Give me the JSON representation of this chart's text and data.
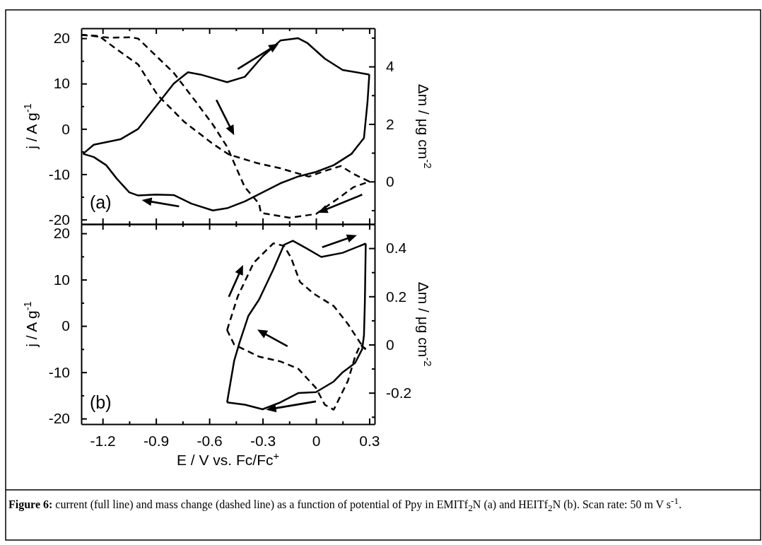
{
  "chart_data": [
    {
      "type": "line",
      "ylabel": "j / A g$^{-1}$",
      "y2label": "Δm / μg cm$^{-2}$",
      "annotations": [
        "(a)"
      ],
      "tick_labels": "y",
      "xlim": [
        -1.32,
        0.33
      ],
      "ylim": [
        -21,
        22.2
      ],
      "y2lim": [
        -1.48,
        5.33
      ],
      "xticks": [
        -1.2,
        {
          "value": -1.05,
          "label": null
        },
        -0.9,
        {
          "value": -0.75,
          "label": null
        },
        -0.6,
        {
          "value": -0.45,
          "label": null
        },
        -0.3,
        {
          "value": -0.15,
          "label": null
        },
        0.0,
        {
          "value": 0.15,
          "label": null
        },
        0.3
      ],
      "yticks": [
        -20,
        {
          "value": -15,
          "label": null
        },
        -10,
        {
          "value": -5,
          "label": null
        },
        0,
        {
          "value": 5,
          "label": null
        },
        10,
        {
          "value": 15,
          "label": null
        },
        20
      ],
      "y2ticks": [
        {
          "value": -1,
          "label": null
        },
        0,
        {
          "value": 1,
          "label": null
        },
        2,
        {
          "value": 3,
          "label": null
        },
        4,
        {
          "value": 5,
          "label": null
        }
      ],
      "series": [
        {
          "color": "#000000",
          "line_style": "solid",
          "x": [
            -1.31,
            -1.25,
            -1.1,
            -1.0,
            -0.9,
            -0.8,
            -0.72,
            -0.65,
            -0.5,
            -0.4,
            -0.3,
            -0.2,
            -0.1,
            -0.05,
            0.05,
            0.15,
            0.3
          ],
          "values": [
            -5.5,
            -3.5,
            -2.3,
            0,
            5,
            10,
            12.5,
            12,
            10.3,
            11.5,
            16,
            19.5,
            20,
            19,
            15.5,
            13,
            12
          ]
        },
        {
          "color": "#000000",
          "line_style": "solid",
          "x": [
            0.3,
            0.29,
            0.27,
            0.23,
            0.2,
            0.1,
            0.0,
            -0.1,
            -0.2,
            -0.3,
            -0.4,
            -0.5,
            -0.58,
            -0.7,
            -0.8,
            -0.9,
            -1.0,
            -1.05,
            -1.12,
            -1.18,
            -1.25,
            -1.31
          ],
          "values": [
            12,
            6,
            -2,
            -4,
            -5.5,
            -8,
            -9.5,
            -10.5,
            -12,
            -14,
            -16,
            -17.5,
            -18,
            -16.5,
            -14.6,
            -14.5,
            -14.7,
            -14,
            -11,
            -8,
            -6.2,
            -5.5
          ]
        },
        {
          "color": "#000000",
          "line_style": "dashed",
          "axis": "y2",
          "x": [
            -1.32,
            -1.16,
            -1.04,
            -1.0,
            -0.8,
            -0.67,
            -0.58,
            -0.5,
            -0.46,
            -0.4,
            -0.32,
            -0.31,
            -0.15,
            0.0,
            0.14,
            0.21,
            0.3
          ],
          "values": [
            5.1,
            5.0,
            5.02,
            4.97,
            3.78,
            2.73,
            1.98,
            1.21,
            0.64,
            -0.2,
            -0.77,
            -1.09,
            -1.26,
            -1.13,
            -0.52,
            -0.2,
            0
          ]
        },
        {
          "color": "#000000",
          "line_style": "dashed",
          "axis": "y2",
          "x": [
            0.3,
            0.21,
            0.14,
            0.05,
            -0.04,
            -0.2,
            -0.33,
            -0.49,
            -0.58,
            -0.74,
            -0.89,
            -1.0,
            -1.13,
            -1.22,
            -1.32
          ],
          "values": [
            0,
            0.27,
            0.54,
            0.37,
            0.17,
            0.46,
            0.64,
            0.94,
            1.31,
            2.07,
            3.0,
            4.07,
            4.64,
            5.06,
            5.1
          ]
        }
      ]
    },
    {
      "type": "line",
      "xlabel": "E / V vs. Fc/Fc$^{+}$",
      "ylabel": "j / A g$^{-1}$",
      "y2label": "Δm / μg cm$^{-2}$",
      "annotations": [
        "(b)",
        "Figure 6:",
        "current  (full line) and mass change (dashed line) as a function of potential of Ppy in EMITf$_{2}$N (a) and HEITf$_{2}$N (b). Scan rate: 50 m V s$^{-1}$."
      ],
      "xlim": [
        -1.32,
        0.33
      ],
      "ylim": [
        -21.2,
        22
      ],
      "y2lim": [
        -0.33,
        0.5
      ],
      "xticks": [
        -1.2,
        {
          "value": -1.05,
          "label": null
        },
        -0.9,
        {
          "value": -0.75,
          "label": null
        },
        -0.6,
        {
          "value": -0.45,
          "label": null
        },
        -0.3,
        {
          "value": -0.15,
          "label": null
        },
        0.0,
        {
          "value": 0.15,
          "label": null
        },
        0.3
      ],
      "yticks": [
        -20,
        {
          "value": -15,
          "label": null
        },
        -10,
        {
          "value": -5,
          "label": null
        },
        0,
        {
          "value": 5,
          "label": null
        },
        10,
        {
          "value": 15,
          "label": null
        },
        20
      ],
      "y2ticks": [
        {
          "value": -0.3,
          "label": null
        },
        -0.2,
        {
          "value": -0.1,
          "label": null
        },
        0.0,
        {
          "value": 0.1,
          "label": null
        },
        0.2,
        {
          "value": 0.3,
          "label": null
        },
        0.4
      ],
      "series": [
        {
          "color": "#000000",
          "line_style": "solid",
          "x": [
            -0.5,
            -0.46,
            -0.43,
            -0.38,
            -0.32,
            -0.24,
            -0.18,
            -0.13,
            -0.06,
            0.03,
            0.15,
            0.28
          ],
          "values": [
            -16.5,
            -7.5,
            -3.6,
            2.2,
            5.7,
            12.2,
            17.5,
            18.4,
            16.9,
            14.9,
            15.8,
            17.8
          ]
        },
        {
          "color": "#000000",
          "line_style": "solid",
          "x": [
            0.28,
            0.275,
            0.27,
            0.26,
            0.22,
            0.15,
            0.1,
            0.0,
            -0.1,
            -0.2,
            -0.3,
            -0.4,
            -0.5
          ],
          "values": [
            17.8,
            5,
            -2,
            -5,
            -8,
            -10,
            -12,
            -14.3,
            -14.5,
            -16.5,
            -18,
            -17,
            -16.5
          ]
        },
        {
          "color": "#000000",
          "line_style": "dashed",
          "axis": "y2",
          "x": [
            -0.5,
            -0.44,
            -0.35,
            -0.24,
            -0.18,
            -0.14,
            -0.09,
            -0.01,
            0.1,
            0.18,
            0.25,
            0.28
          ],
          "values": [
            0.06,
            0.2,
            0.34,
            0.42,
            0.41,
            0.36,
            0.26,
            0.21,
            0.16,
            0.085,
            0.006,
            -0.02
          ]
        },
        {
          "color": "#000000",
          "line_style": "dashed",
          "axis": "y2",
          "x": [
            0.28,
            0.25,
            0.22,
            0.18,
            0.1,
            0.05,
            0.0,
            -0.1,
            -0.2,
            -0.32,
            -0.46,
            -0.5
          ],
          "values": [
            -0.02,
            0,
            -0.05,
            -0.15,
            -0.27,
            -0.25,
            -0.18,
            -0.1,
            -0.07,
            -0.05,
            0,
            0.06
          ]
        }
      ]
    }
  ]
}
